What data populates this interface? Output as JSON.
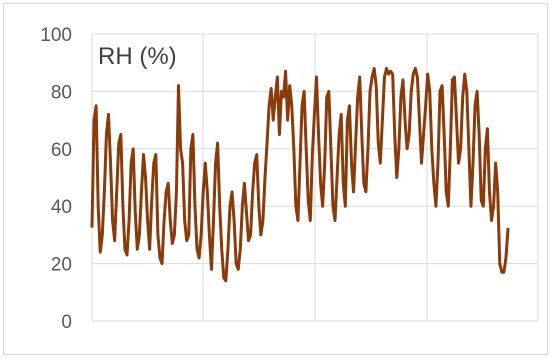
{
  "chart_data": {
    "type": "line",
    "title": "RH (%)",
    "xlabel": "",
    "ylabel": "",
    "ylim": [
      0,
      100
    ],
    "yticks": [
      "0",
      "20",
      "40",
      "60",
      "80",
      "100"
    ],
    "xgrid": true,
    "ygrid": true,
    "legend": "none",
    "series": [
      {
        "color": "#8b3a0c",
        "values": [
          33,
          70,
          75,
          40,
          24,
          30,
          45,
          65,
          72,
          55,
          35,
          28,
          45,
          62,
          65,
          40,
          25,
          23,
          35,
          55,
          60,
          38,
          25,
          30,
          45,
          58,
          50,
          35,
          25,
          42,
          55,
          58,
          30,
          22,
          20,
          35,
          45,
          48,
          35,
          27,
          30,
          45,
          82,
          60,
          55,
          35,
          28,
          30,
          60,
          65,
          40,
          25,
          22,
          30,
          45,
          55,
          45,
          30,
          18,
          35,
          55,
          62,
          40,
          25,
          15,
          14,
          25,
          40,
          45,
          35,
          20,
          18,
          25,
          40,
          48,
          38,
          28,
          30,
          45,
          55,
          58,
          40,
          30,
          35,
          50,
          62,
          75,
          81,
          70,
          78,
          85,
          65,
          80,
          78,
          87,
          70,
          82,
          75,
          60,
          40,
          35,
          55,
          75,
          80,
          60,
          42,
          35,
          58,
          72,
          85,
          65,
          48,
          40,
          55,
          78,
          80,
          60,
          40,
          35,
          50,
          65,
          72,
          48,
          40,
          70,
          75,
          55,
          45,
          62,
          78,
          85,
          65,
          48,
          45,
          60,
          80,
          85,
          88,
          82,
          62,
          55,
          70,
          85,
          88,
          86,
          87,
          86,
          65,
          50,
          60,
          78,
          84,
          70,
          60,
          65,
          80,
          86,
          88,
          85,
          70,
          55,
          65,
          75,
          86,
          80,
          60,
          48,
          40,
          55,
          80,
          82,
          65,
          45,
          40,
          60,
          84,
          85,
          70,
          55,
          60,
          78,
          86,
          80,
          60,
          40,
          55,
          75,
          80,
          65,
          42,
          40,
          60,
          67,
          45,
          35,
          40,
          55,
          45,
          20,
          17,
          17,
          22,
          32
        ]
      }
    ]
  }
}
